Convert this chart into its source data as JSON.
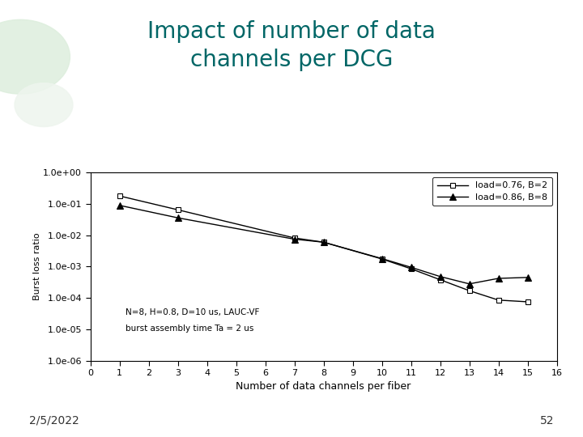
{
  "title_line1": "Impact of number of data",
  "title_line2": "channels per DCG",
  "title_color": "#006666",
  "title_fontsize": 20,
  "xlabel": "Number of data channels per fiber",
  "ylabel": "Burst loss ratio",
  "xlim": [
    0,
    16
  ],
  "ylim_log": [
    -6,
    0
  ],
  "series1_label": "load=0.76, B=2",
  "series1_x": [
    1,
    3,
    7,
    8,
    10,
    11,
    12,
    13,
    14,
    15
  ],
  "series1_y": [
    0.18,
    0.065,
    0.0082,
    0.006,
    0.00175,
    0.00085,
    0.00038,
    0.00017,
    8.5e-05,
    7.5e-05
  ],
  "series1_marker": "s",
  "series2_label": "load=0.86, B=8",
  "series2_x": [
    1,
    3,
    7,
    8,
    10,
    11,
    12,
    13,
    14,
    15
  ],
  "series2_y": [
    0.09,
    0.036,
    0.0075,
    0.006,
    0.0018,
    0.00095,
    0.00048,
    0.00028,
    0.00042,
    0.00045
  ],
  "series2_marker": "^",
  "line_color": "#000000",
  "annotation1": "N=8, H=0.8, D=10 us, LAUC-VF",
  "annotation2": "burst assembly time Ta = 2 us",
  "date_text": "2/5/2022",
  "page_text": "52",
  "bg_color": "#ffffff",
  "plot_bg_color": "#ffffff"
}
